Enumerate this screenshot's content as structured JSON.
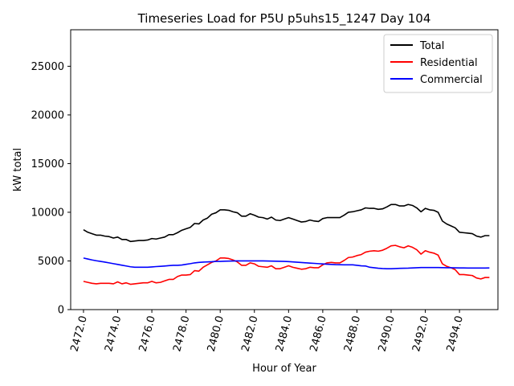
{
  "chart_data": {
    "type": "line",
    "title": "Timeseries Load for P5U p5uhs15_1247  Day 104",
    "xlabel": "Hour of Year",
    "ylabel": "kW total",
    "xlim": [
      2471.25,
      2496.25
    ],
    "ylim": [
      0,
      28750
    ],
    "xticks": [
      2472,
      2474,
      2476,
      2478,
      2480,
      2482,
      2484,
      2486,
      2488,
      2490,
      2492,
      2494
    ],
    "xtick_labels": [
      "2472.0",
      "2474.0",
      "2476.0",
      "2478.0",
      "2480.0",
      "2482.0",
      "2484.0",
      "2486.0",
      "2488.0",
      "2490.0",
      "2492.0",
      "2494.0"
    ],
    "yticks": [
      0,
      5000,
      10000,
      15000,
      20000,
      25000
    ],
    "ytick_labels": [
      "0",
      "5000",
      "10000",
      "15000",
      "20000",
      "25000"
    ],
    "legend_position": "top-right",
    "x_start": 2472,
    "x_step": 0.25,
    "series": [
      {
        "name": "Total",
        "color": "#000000",
        "values": [
          8200,
          7950,
          7800,
          7650,
          7650,
          7550,
          7500,
          7350,
          7450,
          7200,
          7200,
          7000,
          7050,
          7100,
          7100,
          7150,
          7300,
          7250,
          7350,
          7450,
          7700,
          7700,
          7900,
          8150,
          8300,
          8450,
          8850,
          8800,
          9200,
          9400,
          9800,
          9950,
          10250,
          10250,
          10200,
          10050,
          9950,
          9600,
          9600,
          9850,
          9700,
          9500,
          9450,
          9300,
          9500,
          9200,
          9150,
          9300,
          9450,
          9300,
          9150,
          9000,
          9050,
          9200,
          9100,
          9050,
          9350,
          9450,
          9450,
          9450,
          9450,
          9700,
          10000,
          10050,
          10150,
          10250,
          10450,
          10400,
          10400,
          10300,
          10350,
          10550,
          10800,
          10800,
          10650,
          10650,
          10800,
          10700,
          10450,
          10050,
          10400,
          10250,
          10200,
          10000,
          9100,
          8800,
          8600,
          8400,
          7950,
          7900,
          7850,
          7800,
          7550,
          7450,
          7600,
          7600
        ]
      },
      {
        "name": "Residential",
        "color": "#ff0000",
        "values": [
          2900,
          2800,
          2700,
          2650,
          2700,
          2700,
          2700,
          2650,
          2850,
          2650,
          2750,
          2600,
          2650,
          2700,
          2750,
          2750,
          2900,
          2750,
          2800,
          2950,
          3100,
          3100,
          3400,
          3550,
          3550,
          3600,
          4000,
          3950,
          4350,
          4600,
          4850,
          5000,
          5300,
          5300,
          5250,
          5100,
          4900,
          4550,
          4550,
          4800,
          4700,
          4450,
          4400,
          4350,
          4500,
          4200,
          4200,
          4350,
          4500,
          4350,
          4250,
          4150,
          4200,
          4350,
          4300,
          4300,
          4600,
          4800,
          4850,
          4800,
          4800,
          5050,
          5350,
          5400,
          5550,
          5650,
          5900,
          6000,
          6050,
          6000,
          6100,
          6300,
          6550,
          6600,
          6450,
          6350,
          6550,
          6400,
          6150,
          5700,
          6050,
          5900,
          5800,
          5600,
          4700,
          4450,
          4300,
          4100,
          3600,
          3600,
          3550,
          3500,
          3250,
          3150,
          3300,
          3300
        ]
      },
      {
        "name": "Commercial",
        "color": "#0000ff",
        "values": [
          5300,
          5200,
          5100,
          5020,
          4950,
          4880,
          4800,
          4720,
          4640,
          4560,
          4480,
          4400,
          4350,
          4350,
          4350,
          4350,
          4380,
          4420,
          4450,
          4480,
          4520,
          4550,
          4550,
          4580,
          4650,
          4720,
          4800,
          4850,
          4880,
          4900,
          4920,
          4950,
          4950,
          4970,
          4980,
          4990,
          5000,
          5000,
          5000,
          5000,
          5000,
          5000,
          5000,
          4990,
          4980,
          4970,
          4960,
          4950,
          4930,
          4900,
          4870,
          4840,
          4810,
          4780,
          4750,
          4720,
          4690,
          4660,
          4640,
          4620,
          4610,
          4600,
          4600,
          4600,
          4550,
          4500,
          4480,
          4350,
          4300,
          4250,
          4220,
          4200,
          4200,
          4220,
          4240,
          4250,
          4260,
          4280,
          4300,
          4320,
          4320,
          4320,
          4320,
          4320,
          4310,
          4300,
          4300,
          4290,
          4280,
          4280,
          4270,
          4270,
          4270,
          4270,
          4270,
          4280
        ]
      }
    ]
  }
}
